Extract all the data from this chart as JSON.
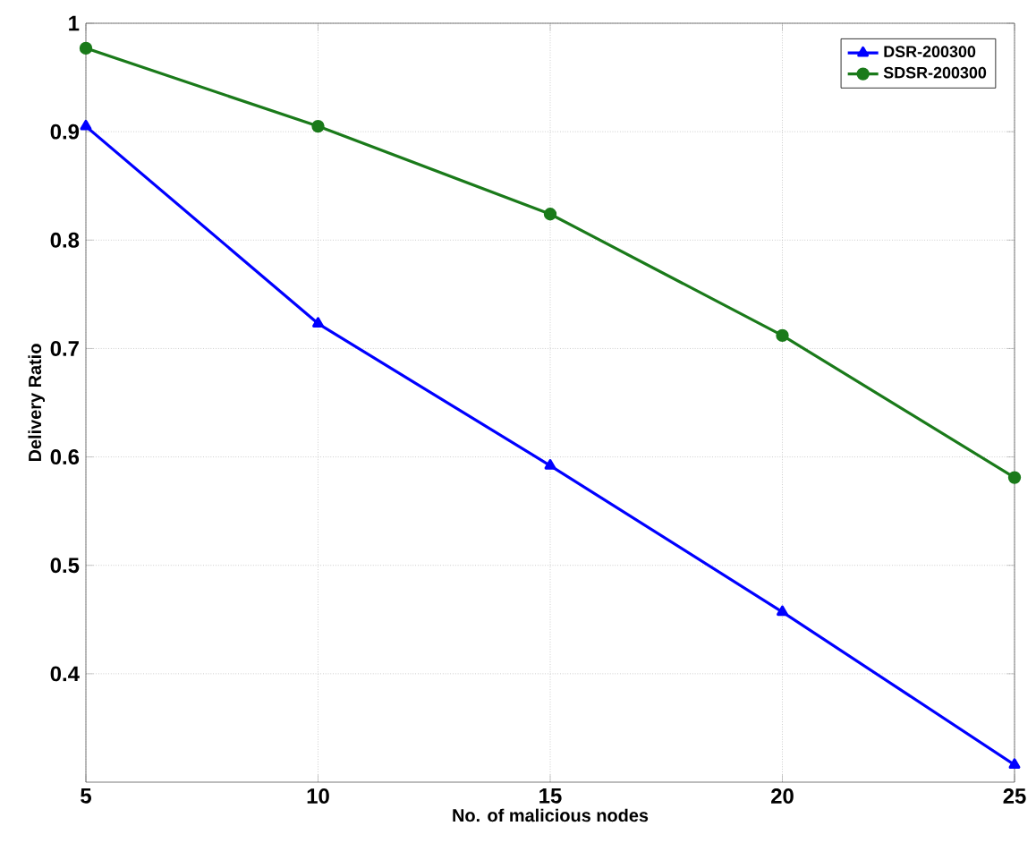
{
  "chart_data": {
    "type": "line",
    "xlabel": "No. of malicious nodes",
    "ylabel": "Delivery Ratio",
    "x": [
      5,
      10,
      15,
      20,
      25
    ],
    "series": [
      {
        "name": "DSR-200300",
        "color": "#0000ff",
        "marker": "triangle",
        "values": [
          0.905,
          0.723,
          0.592,
          0.457,
          0.316
        ]
      },
      {
        "name": "SDSR-200300",
        "color": "#1a7a1a",
        "marker": "circle",
        "values": [
          0.977,
          0.905,
          0.824,
          0.712,
          0.581
        ]
      }
    ],
    "xlim": [
      5,
      25
    ],
    "xticks": [
      5,
      10,
      15,
      20,
      25
    ],
    "ylim": [
      0.3,
      1
    ],
    "yticks": [
      0.4,
      0.5,
      0.6,
      0.7,
      0.8,
      0.9,
      1
    ],
    "grid": true,
    "legend": "top right",
    "line_style": "solid"
  }
}
